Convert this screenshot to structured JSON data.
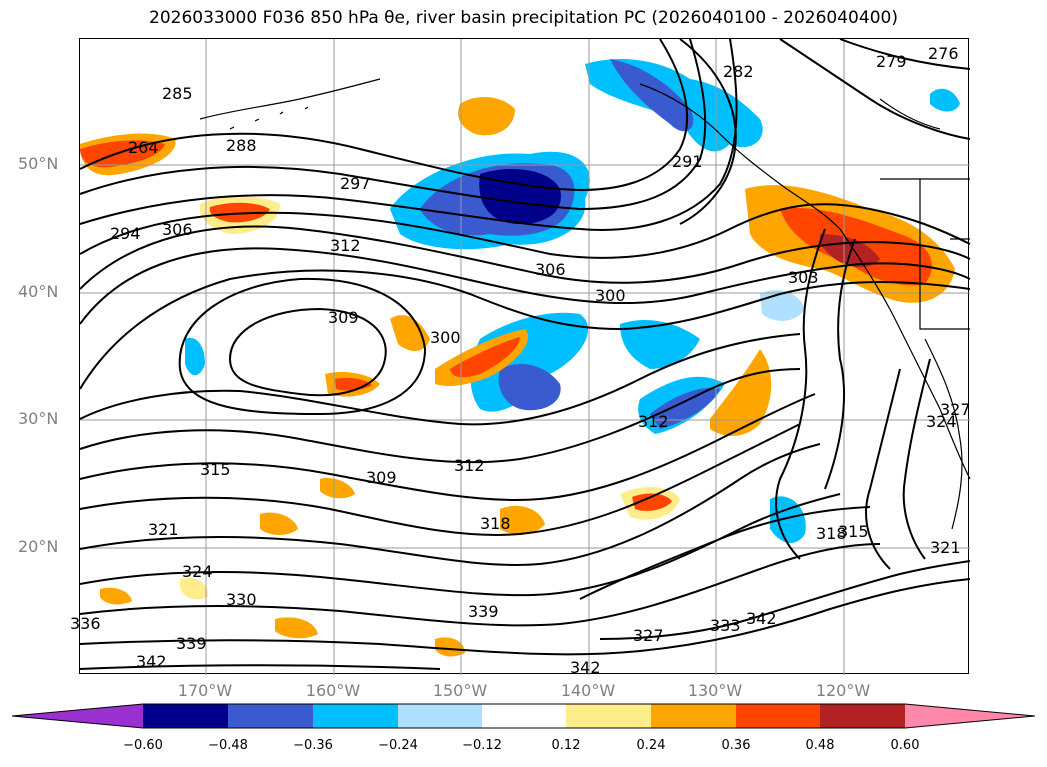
{
  "title": "2026033000 F036 850 hPa θe, river basin precipitation PC (2026040100 - 2026040400)",
  "lat_labels": [
    "50°N",
    "40°N",
    "30°N",
    "20°N"
  ],
  "lon_labels": [
    "170°W",
    "160°W",
    "150°W",
    "140°W",
    "130°W",
    "120°W"
  ],
  "contour_labels": [
    "285",
    "288",
    "264",
    "294",
    "306",
    "297",
    "312",
    "306",
    "309",
    "300",
    "300",
    "291",
    "282",
    "279",
    "276",
    "303",
    "312",
    "315",
    "309",
    "312",
    "318",
    "321",
    "324",
    "330",
    "336",
    "339",
    "339",
    "342",
    "342",
    "327",
    "333",
    "342",
    "324",
    "327",
    "321",
    "318",
    "315"
  ],
  "colorbar": {
    "ticks": [
      "−0.60",
      "−0.48",
      "−0.36",
      "−0.24",
      "−0.12",
      "0.12",
      "0.24",
      "0.36",
      "0.48",
      "0.60"
    ],
    "colors": [
      "#9b30d0",
      "#00008b",
      "#3a5ad0",
      "#00bfff",
      "#b0e0ff",
      "#ffffff",
      "#ffec8b",
      "#ffa500",
      "#ff4500",
      "#b22222",
      "#ff88aa"
    ]
  },
  "precip_colors": {
    "neg_strong": "#00008b",
    "neg_mid": "#3a5ad0",
    "neg_light": "#00bfff",
    "neg_faint": "#b0e0ff",
    "pos_faint": "#ffec8b",
    "pos_light": "#ffa500",
    "pos_mid": "#ff4500",
    "pos_strong": "#b22222"
  }
}
